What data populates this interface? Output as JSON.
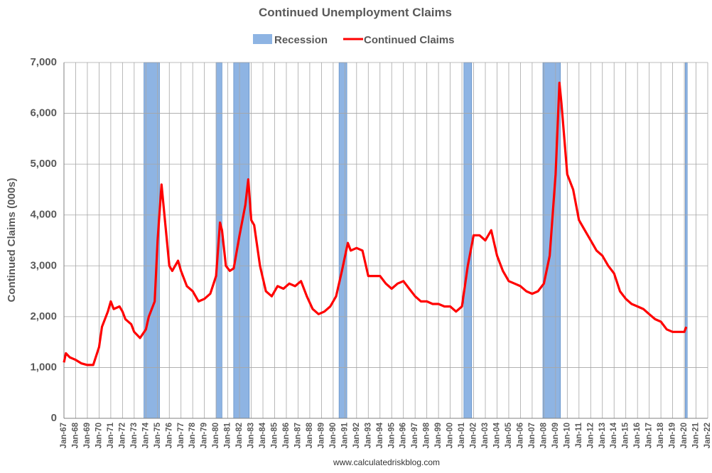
{
  "chart_data": {
    "type": "line",
    "title": "Continued Unemployment Claims",
    "ylabel": "Continued Claims (000s)",
    "source": "www.calculatedriskblog.com",
    "ylim": [
      0,
      7000
    ],
    "yticks": [
      0,
      {
        "value": 1000,
        "label": "1,000"
      },
      {
        "value": 2000,
        "label": "2,000"
      },
      {
        "value": 3000,
        "label": "3,000"
      },
      {
        "value": 4000,
        "label": "4,000"
      },
      {
        "value": 5000,
        "label": "5,000"
      },
      {
        "value": 6000,
        "label": "6,000"
      },
      {
        "value": 7000,
        "label": "7,000"
      }
    ],
    "xlim": [
      "Jan-67",
      "Jan-22"
    ],
    "xticks": [
      "Jan-67",
      "Jan-68",
      "Jan-69",
      "Jan-70",
      "Jan-71",
      "Jan-72",
      "Jan-73",
      "Jan-74",
      "Jan-75",
      "Jan-76",
      "Jan-77",
      "Jan-78",
      "Jan-79",
      "Jan-80",
      "Jan-81",
      "Jan-82",
      "Jan-83",
      "Jan-84",
      "Jan-85",
      "Jan-86",
      "Jan-87",
      "Jan-88",
      "Jan-89",
      "Jan-90",
      "Jan-91",
      "Jan-92",
      "Jan-93",
      "Jan-94",
      "Jan-95",
      "Jan-96",
      "Jan-97",
      "Jan-98",
      "Jan-99",
      "Jan-00",
      "Jan-01",
      "Jan-02",
      "Jan-03",
      "Jan-04",
      "Jan-05",
      "Jan-06",
      "Jan-07",
      "Jan-08",
      "Jan-09",
      "Jan-10",
      "Jan-11",
      "Jan-12",
      "Jan-13",
      "Jan-14",
      "Jan-15",
      "Jan-16",
      "Jan-17",
      "Jan-18",
      "Jan-19",
      "Jan-20",
      "Jan-21",
      "Jan-22"
    ],
    "grid": true,
    "recession": {
      "name": "Recession",
      "color": "#8eb4e3",
      "periods": [
        {
          "start": "Nov-73",
          "end": "Mar-75"
        },
        {
          "start": "Jan-80",
          "end": "Jul-80"
        },
        {
          "start": "Jul-81",
          "end": "Nov-82"
        },
        {
          "start": "Jul-90",
          "end": "Mar-91"
        },
        {
          "start": "Mar-01",
          "end": "Nov-01"
        },
        {
          "start": "Dec-07",
          "end": "Jun-09"
        },
        {
          "start": "Feb-20",
          "end": "Apr-20"
        }
      ]
    },
    "series": [
      {
        "name": "Continued Claims",
        "color": "#ff0000",
        "x": [
          "Jan-67",
          "Mar-67",
          "Jul-67",
          "Jan-68",
          "Jul-68",
          "Jan-69",
          "Jul-69",
          "Jan-70",
          "Apr-70",
          "Oct-70",
          "Jan-71",
          "Apr-71",
          "Oct-71",
          "Jan-72",
          "Apr-72",
          "Oct-72",
          "Jan-73",
          "Jul-73",
          "Jan-74",
          "Apr-74",
          "Oct-74",
          "Jan-75",
          "May-75",
          "Aug-75",
          "Jan-76",
          "Apr-76",
          "Oct-76",
          "Jan-77",
          "Jul-77",
          "Jan-78",
          "Jul-78",
          "Jan-79",
          "Jul-79",
          "Jan-80",
          "May-80",
          "Jul-80",
          "Nov-80",
          "Mar-81",
          "Jul-81",
          "Jan-82",
          "Jul-82",
          "Oct-82",
          "Jan-83",
          "Apr-83",
          "Oct-83",
          "Apr-84",
          "Oct-84",
          "Apr-85",
          "Oct-85",
          "Apr-86",
          "Oct-86",
          "Apr-87",
          "Oct-87",
          "Apr-88",
          "Oct-88",
          "Apr-89",
          "Oct-89",
          "Apr-90",
          "Oct-90",
          "Apr-91",
          "Jul-91",
          "Jan-92",
          "Jul-92",
          "Jan-93",
          "Jul-93",
          "Jan-94",
          "Jul-94",
          "Jan-95",
          "Jul-95",
          "Jan-96",
          "Jul-96",
          "Jan-97",
          "Jul-97",
          "Jan-98",
          "Jul-98",
          "Jan-99",
          "Jul-99",
          "Jan-00",
          "Jul-00",
          "Jan-01",
          "Jul-01",
          "Jan-02",
          "Jul-02",
          "Jan-03",
          "Jul-03",
          "Jan-04",
          "Jul-04",
          "Jan-05",
          "Jul-05",
          "Jan-06",
          "Jul-06",
          "Jan-07",
          "Jul-07",
          "Jan-08",
          "Jul-08",
          "Jan-09",
          "May-09",
          "Jul-09",
          "Jan-10",
          "Jul-10",
          "Jan-11",
          "Jul-11",
          "Jan-12",
          "Jul-12",
          "Jan-13",
          "Jul-13",
          "Jan-14",
          "Jul-14",
          "Jan-15",
          "Jul-15",
          "Jan-16",
          "Jul-16",
          "Jan-17",
          "Jul-17",
          "Jan-18",
          "Jul-18",
          "Jan-19",
          "Jul-19",
          "Jan-20",
          "Mar-20"
        ],
        "values": [
          1100,
          1280,
          1200,
          1150,
          1080,
          1050,
          1050,
          1400,
          1800,
          2100,
          2300,
          2150,
          2200,
          2100,
          1950,
          1850,
          1700,
          1580,
          1750,
          2000,
          2300,
          3500,
          4600,
          4000,
          3000,
          2900,
          3100,
          2900,
          2600,
          2500,
          2300,
          2350,
          2450,
          2800,
          3850,
          3700,
          3000,
          2900,
          2950,
          3600,
          4200,
          4700,
          3900,
          3800,
          3000,
          2500,
          2400,
          2600,
          2550,
          2650,
          2600,
          2700,
          2400,
          2150,
          2050,
          2100,
          2200,
          2400,
          2900,
          3450,
          3300,
          3350,
          3300,
          2800,
          2800,
          2800,
          2650,
          2550,
          2650,
          2700,
          2550,
          2400,
          2300,
          2300,
          2250,
          2250,
          2200,
          2200,
          2100,
          2200,
          3000,
          3600,
          3600,
          3500,
          3700,
          3200,
          2900,
          2700,
          2650,
          2600,
          2500,
          2450,
          2500,
          2650,
          3200,
          4800,
          6600,
          6200,
          4800,
          4500,
          3900,
          3700,
          3500,
          3300,
          3200,
          3000,
          2850,
          2500,
          2350,
          2250,
          2200,
          2150,
          2050,
          1950,
          1900,
          1750,
          1700,
          1700,
          1700,
          1800
        ]
      }
    ]
  }
}
